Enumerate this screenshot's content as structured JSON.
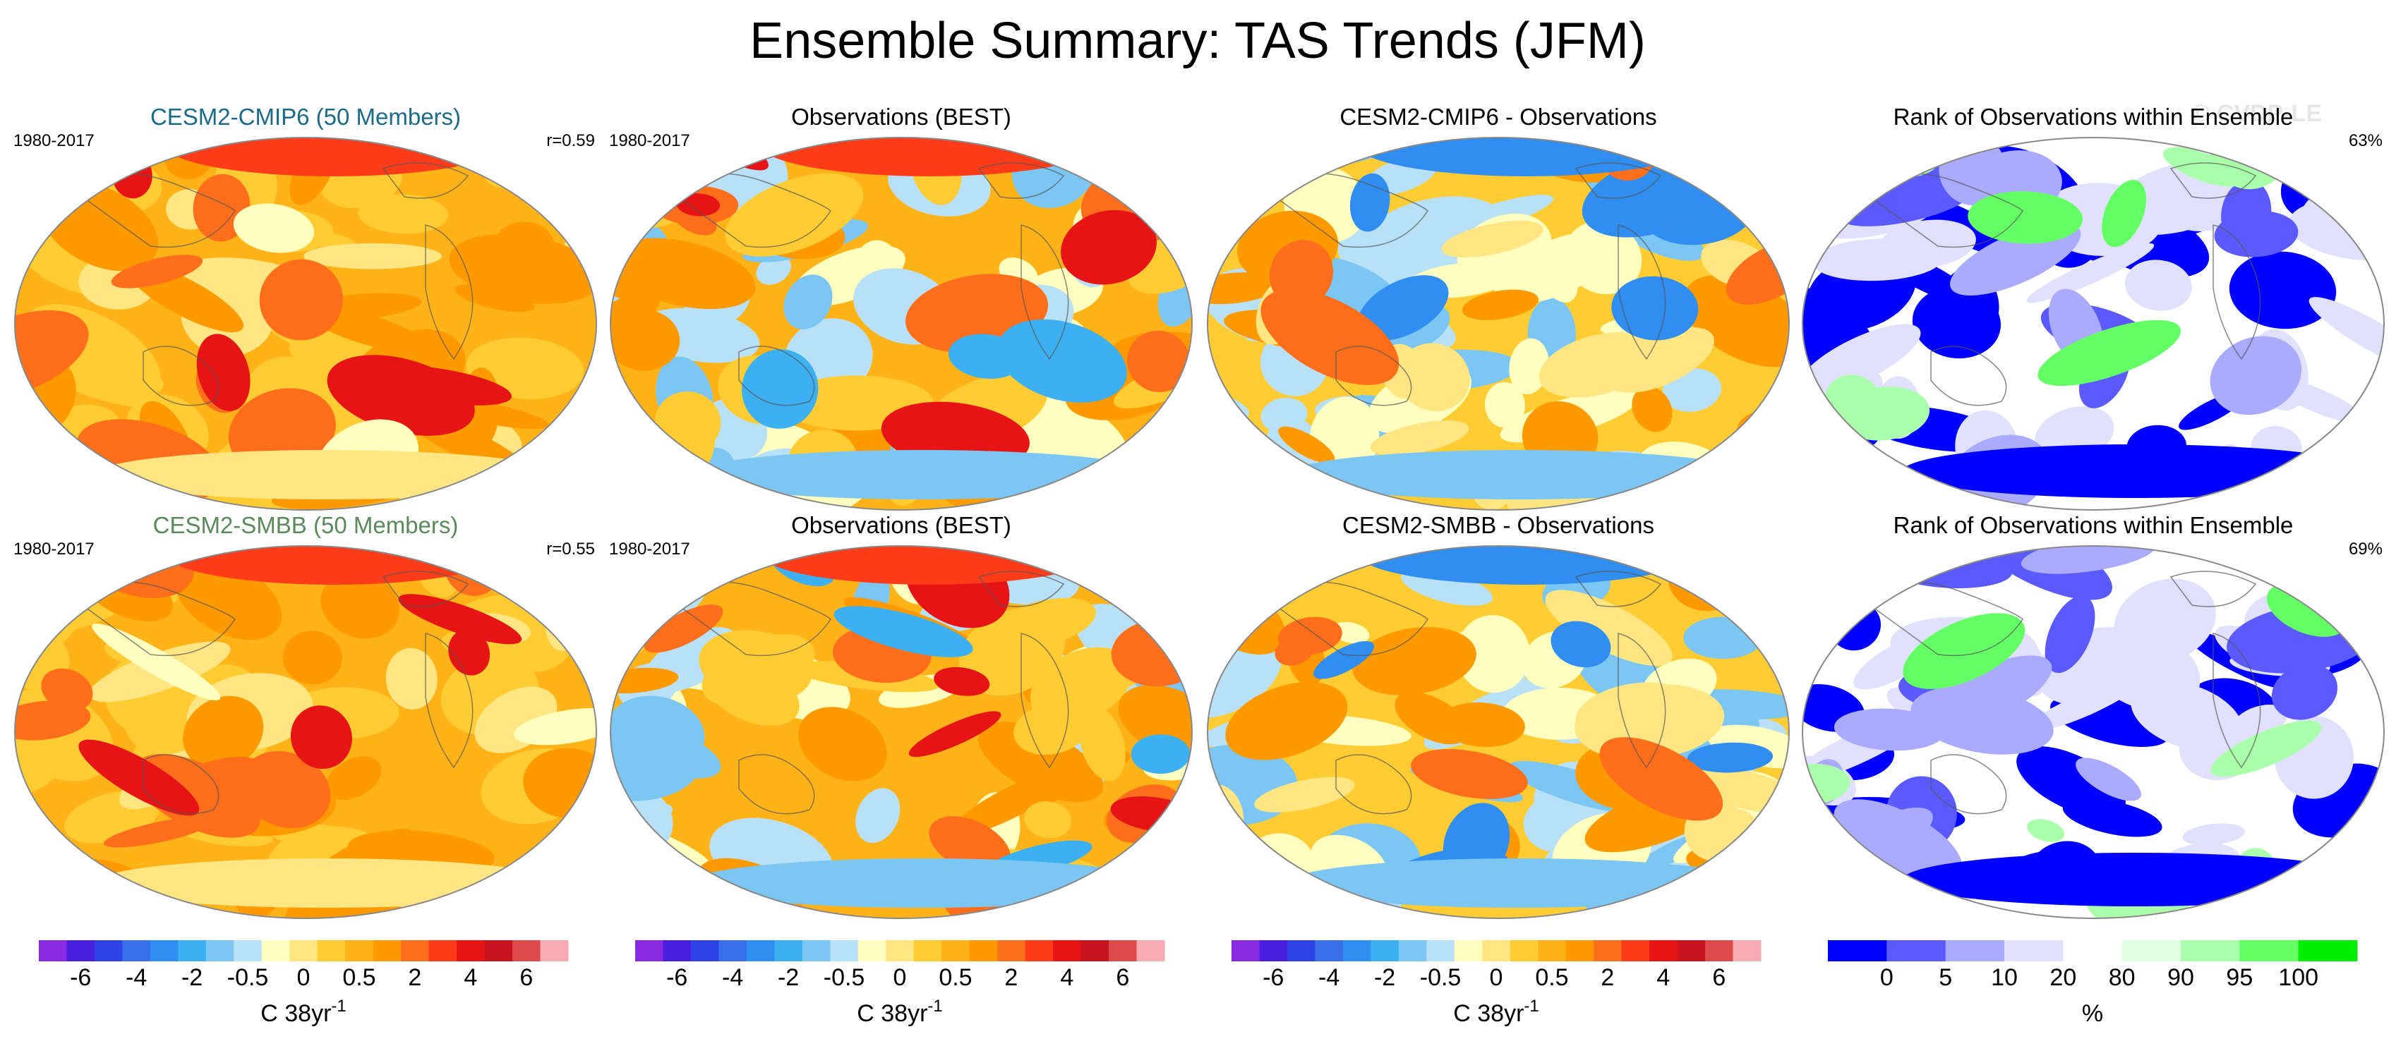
{
  "figure": {
    "title": "Ensemble Summary: TAS Trends (JFM)",
    "watermark": "© CVDP-LE"
  },
  "colors": {
    "trend_palette": [
      "#8a2be2",
      "#4a1fe0",
      "#2d43e6",
      "#3a6ee8",
      "#2f8ef0",
      "#3cb0f0",
      "#7cc6f4",
      "#b8e0f6",
      "#ffffc0",
      "#ffe682",
      "#ffcc33",
      "#ffb319",
      "#ff9900",
      "#ff6e1a",
      "#ff3c1a",
      "#e61414",
      "#c8141e",
      "#dc4a4a",
      "#f5aab4"
    ],
    "rank_palette": [
      "#0000ff",
      "#5a5aff",
      "#aaaaff",
      "#e1e1ff",
      "#ffffff",
      "#e1ffe1",
      "#aaffaa",
      "#64ff64",
      "#00ee00"
    ]
  },
  "chart_data": [
    {
      "type": "heatmap",
      "panel": "model-1-trend",
      "title": "CESM2-CMIP6 (50 Members)",
      "title_color": "#1a6a8a",
      "left_label": "1980-2017",
      "right_label": "r=0.59",
      "pattern": "model",
      "seed": 1
    },
    {
      "type": "heatmap",
      "panel": "obs-1-trend",
      "title": "Observations (BEST)",
      "title_color": "#000000",
      "left_label": "1980-2017",
      "right_label": "",
      "pattern": "obs",
      "seed": 2
    },
    {
      "type": "heatmap",
      "panel": "diff-1",
      "title": "CESM2-CMIP6 - Observations",
      "title_color": "#000000",
      "left_label": "",
      "right_label": "",
      "pattern": "diff",
      "seed": 3
    },
    {
      "type": "heatmap",
      "panel": "rank-1",
      "title": "Rank of Observations within Ensemble",
      "title_color": "#000000",
      "left_label": "",
      "right_label": "63%",
      "pattern": "rank",
      "seed": 4
    },
    {
      "type": "heatmap",
      "panel": "model-2-trend",
      "title": "CESM2-SMBB (50 Members)",
      "title_color": "#5a8a5a",
      "left_label": "1980-2017",
      "right_label": "r=0.55",
      "pattern": "model",
      "seed": 5
    },
    {
      "type": "heatmap",
      "panel": "obs-2-trend",
      "title": "Observations (BEST)",
      "title_color": "#000000",
      "left_label": "1980-2017",
      "right_label": "",
      "pattern": "obs",
      "seed": 6
    },
    {
      "type": "heatmap",
      "panel": "diff-2",
      "title": "CESM2-SMBB - Observations",
      "title_color": "#000000",
      "left_label": "",
      "right_label": "",
      "pattern": "diff",
      "seed": 7
    },
    {
      "type": "heatmap",
      "panel": "rank-2",
      "title": "Rank of Observations within Ensemble",
      "title_color": "#000000",
      "left_label": "",
      "right_label": "69%",
      "pattern": "rank",
      "seed": 8
    }
  ],
  "colorbars": [
    {
      "name": "trend-colorbar-1",
      "palette": "trend",
      "ticks": [
        "-6",
        "-4",
        "-2",
        "-0.5",
        "0",
        "0.5",
        "2",
        "4",
        "6"
      ],
      "label": "C 38yr",
      "label_sup": "-1"
    },
    {
      "name": "trend-colorbar-2",
      "palette": "trend",
      "ticks": [
        "-6",
        "-4",
        "-2",
        "-0.5",
        "0",
        "0.5",
        "2",
        "4",
        "6"
      ],
      "label": "C 38yr",
      "label_sup": "-1"
    },
    {
      "name": "trend-colorbar-3",
      "palette": "trend",
      "ticks": [
        "-6",
        "-4",
        "-2",
        "-0.5",
        "0",
        "0.5",
        "2",
        "4",
        "6"
      ],
      "label": "C 38yr",
      "label_sup": "-1"
    },
    {
      "name": "rank-colorbar",
      "palette": "rank",
      "ticks": [
        "0",
        "5",
        "10",
        "20",
        "80",
        "90",
        "95",
        "100"
      ],
      "label": "%",
      "label_sup": ""
    }
  ]
}
